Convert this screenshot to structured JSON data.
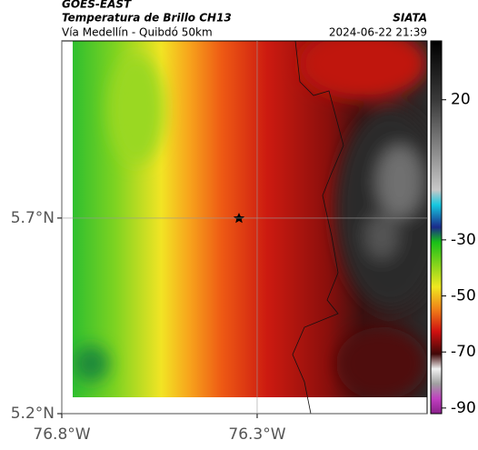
{
  "header": {
    "title": "GOES-EAST",
    "subtitle": "Temperatura de Brillo CH13",
    "source": "SIATA",
    "route": "Vía Medellín - Quibdó 50km",
    "timestamp": "2024-06-22 21:39"
  },
  "map": {
    "xlim": [
      -76.8,
      -75.865
    ],
    "ylim": [
      5.2,
      6.153
    ],
    "xticks": [
      {
        "value": -76.8,
        "label": "76.8°W"
      },
      {
        "value": -76.3,
        "label": "76.3°W"
      }
    ],
    "yticks": [
      {
        "value": 5.2,
        "label": "5.2°N"
      },
      {
        "value": 5.7,
        "label": "5.7°N"
      }
    ]
  },
  "colorbar": {
    "lim": [
      -92,
      41
    ],
    "ticks": [
      20,
      -30,
      -50,
      -70,
      -90
    ]
  }
}
